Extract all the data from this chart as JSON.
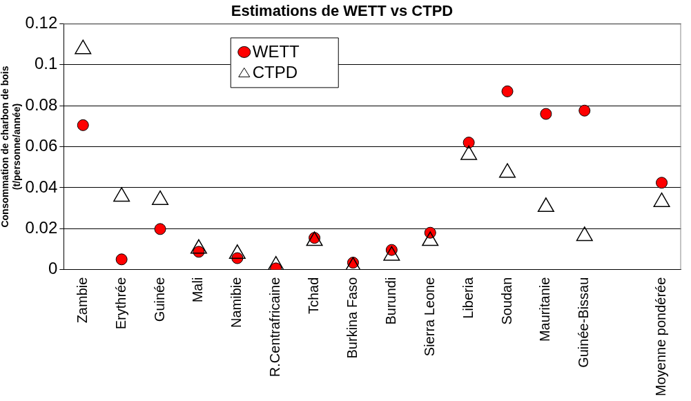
{
  "chart_data": {
    "type": "scatter",
    "title": "Estimations de WETT vs CTPD",
    "ylabel": "Consommation de charbon de bois\n(t/personne/année)",
    "categories": [
      "Zambie",
      "Erythrée",
      "Guinée",
      "Mali",
      "Namibie",
      "R.Centrafricaine",
      "Tchad",
      "Burkina Faso",
      "Burundi",
      "Sierra Leone",
      "Liberia",
      "Soudan",
      "Mauritanie",
      "Guinée-Bissau",
      null,
      "Moyenne pondérée"
    ],
    "series": [
      {
        "name": "WETT",
        "color": "#ff0000",
        "marker": "circle",
        "values": [
          0.0705,
          0.005,
          0.0198,
          0.0087,
          0.0056,
          0.0006,
          0.0155,
          0.0034,
          0.0096,
          0.018,
          0.062,
          0.087,
          0.076,
          0.0776,
          null,
          0.0424
        ]
      },
      {
        "name": "CTPD",
        "color": "#000000",
        "marker": "triangle",
        "values": [
          0.1076,
          0.0356,
          0.034,
          0.0102,
          0.0077,
          0.002,
          0.014,
          0.0015,
          0.0068,
          0.014,
          0.056,
          0.0473,
          0.0306,
          0.0164,
          null,
          0.033
        ]
      }
    ],
    "ylim": [
      0,
      0.12
    ],
    "yticks": [
      0,
      0.02,
      0.04,
      0.06,
      0.08,
      0.1,
      0.12
    ],
    "grid": "y",
    "legend": "top"
  }
}
